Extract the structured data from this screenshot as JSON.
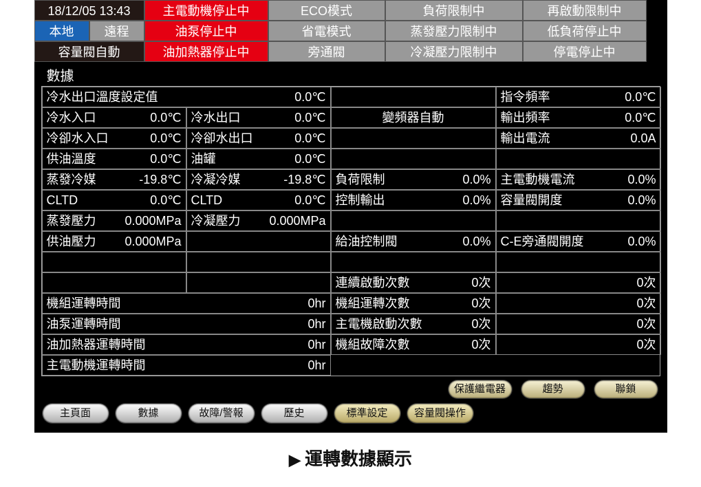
{
  "status": {
    "datetime": "18/12/05 13:43",
    "row1": {
      "c2": "主電動機停止中",
      "c3": "ECO模式",
      "c4": "負荷限制中",
      "c5": "再啟動限制中"
    },
    "row2": {
      "local": "本地",
      "remote": "遠程",
      "c2": "油泵停止中",
      "c3": "省電模式",
      "c4": "蒸發壓力限制中",
      "c5": "低負荷停止中"
    },
    "row3": {
      "c1": "容量閥自動",
      "c2": "油加熱器停止中",
      "c3": "旁通閥",
      "c4": "冷凝壓力限制中",
      "c5": "停電停止中"
    }
  },
  "section_title": "數據",
  "rows": [
    [
      {
        "span": 2,
        "lab": "冷水出口溫度設定值",
        "val": "0.0℃"
      },
      {
        "span": 1,
        "rowspan_placeholder": true,
        "lab": "",
        "val": ""
      },
      {
        "span": 1,
        "lab": "指令頻率",
        "val": "0.0℃"
      }
    ],
    [
      {
        "lab": "冷水入口",
        "val": "0.0℃"
      },
      {
        "lab": "冷水出口",
        "val": "0.0℃"
      },
      {
        "center": true,
        "lab": "變頻器自動",
        "val": ""
      },
      {
        "lab": "輸出頻率",
        "val": "0.0℃"
      }
    ],
    [
      {
        "lab": "冷卻水入口",
        "val": "0.0℃"
      },
      {
        "lab": "冷卻水出口",
        "val": "0.0℃"
      },
      {
        "center": true,
        "lab": "",
        "val": ""
      },
      {
        "lab": "輸出電流",
        "val": "0.0A"
      }
    ],
    [
      {
        "lab": "供油溫度",
        "val": "0.0℃"
      },
      {
        "lab": "油罐",
        "val": "0.0℃"
      },
      {
        "lab": "",
        "val": ""
      },
      {
        "lab": "",
        "val": ""
      }
    ],
    [
      {
        "lab": "蒸發冷媒",
        "val": "-19.8℃"
      },
      {
        "lab": "冷凝冷媒",
        "val": "-19.8℃"
      },
      {
        "lab": "負荷限制",
        "val": "0.0%"
      },
      {
        "lab": "主電動機電流",
        "val": "0.0%"
      }
    ],
    [
      {
        "lab": "CLTD",
        "val": "0.0℃"
      },
      {
        "lab": "CLTD",
        "val": "0.0℃"
      },
      {
        "lab": "控制輸出",
        "val": "0.0%"
      },
      {
        "lab": "容量閥開度",
        "val": "0.0%"
      }
    ],
    [
      {
        "lab": "蒸發壓力",
        "val": "0.000MPa"
      },
      {
        "lab": "冷凝壓力",
        "val": "0.000MPa"
      },
      {
        "lab": "",
        "val": ""
      },
      {
        "lab": "",
        "val": ""
      }
    ],
    [
      {
        "lab": "供油壓力",
        "val": "0.000MPa"
      },
      {
        "lab": "",
        "val": ""
      },
      {
        "lab": "給油控制閥",
        "val": "0.0%"
      },
      {
        "lab": "C-E旁通閥開度",
        "val": "0.0%"
      }
    ],
    [
      {
        "lab": "",
        "val": ""
      },
      {
        "lab": "",
        "val": ""
      },
      {
        "lab": "",
        "val": ""
      },
      {
        "lab": "",
        "val": ""
      }
    ],
    [
      {
        "lab": "",
        "val": ""
      },
      {
        "lab": "",
        "val": ""
      },
      {
        "lab": "連續啟動次數",
        "val": "0次"
      },
      {
        "lab": "",
        "val": "0次"
      }
    ],
    [
      {
        "span": 2,
        "lab": "機組運轉時間",
        "val": "0hr"
      },
      {
        "lab": "機組運轉次數",
        "val": "0次"
      },
      {
        "lab": "",
        "val": "0次"
      }
    ],
    [
      {
        "span": 2,
        "lab": "油泵運轉時間",
        "val": "0hr"
      },
      {
        "lab": "主電機啟動次數",
        "val": "0次"
      },
      {
        "lab": "",
        "val": "0次"
      }
    ],
    [
      {
        "span": 2,
        "lab": "油加熱器運轉時間",
        "val": "0hr"
      },
      {
        "lab": "機組故障次數",
        "val": "0次"
      },
      {
        "lab": "",
        "val": "0次"
      }
    ],
    [
      {
        "span": 2,
        "lab": "主電動機運轉時間",
        "val": "0hr"
      },
      {
        "noborder": true,
        "lab": "",
        "val": ""
      },
      {
        "noborder": true,
        "lab": "",
        "val": ""
      }
    ]
  ],
  "right_buttons": [
    "保護繼電器",
    "趨勢",
    "聯鎖"
  ],
  "nav_buttons": [
    {
      "label": "主頁面",
      "gold": false
    },
    {
      "label": "數據",
      "gold": false
    },
    {
      "label": "故障/警報",
      "gold": false
    },
    {
      "label": "歷史",
      "gold": false
    },
    {
      "label": "標準設定",
      "gold": true
    },
    {
      "label": "容量閥操作",
      "gold": true
    }
  ],
  "caption": "運轉數據顯示",
  "colors": {
    "bg": "#000000",
    "red": "#e50012",
    "grey": "#999999",
    "blue": "#1b64b5",
    "border": "#888888",
    "gold_top": "#f5eec2",
    "gold_bot": "#b7a765",
    "silver_top": "#fefefe",
    "silver_bot": "#aeaeae"
  }
}
